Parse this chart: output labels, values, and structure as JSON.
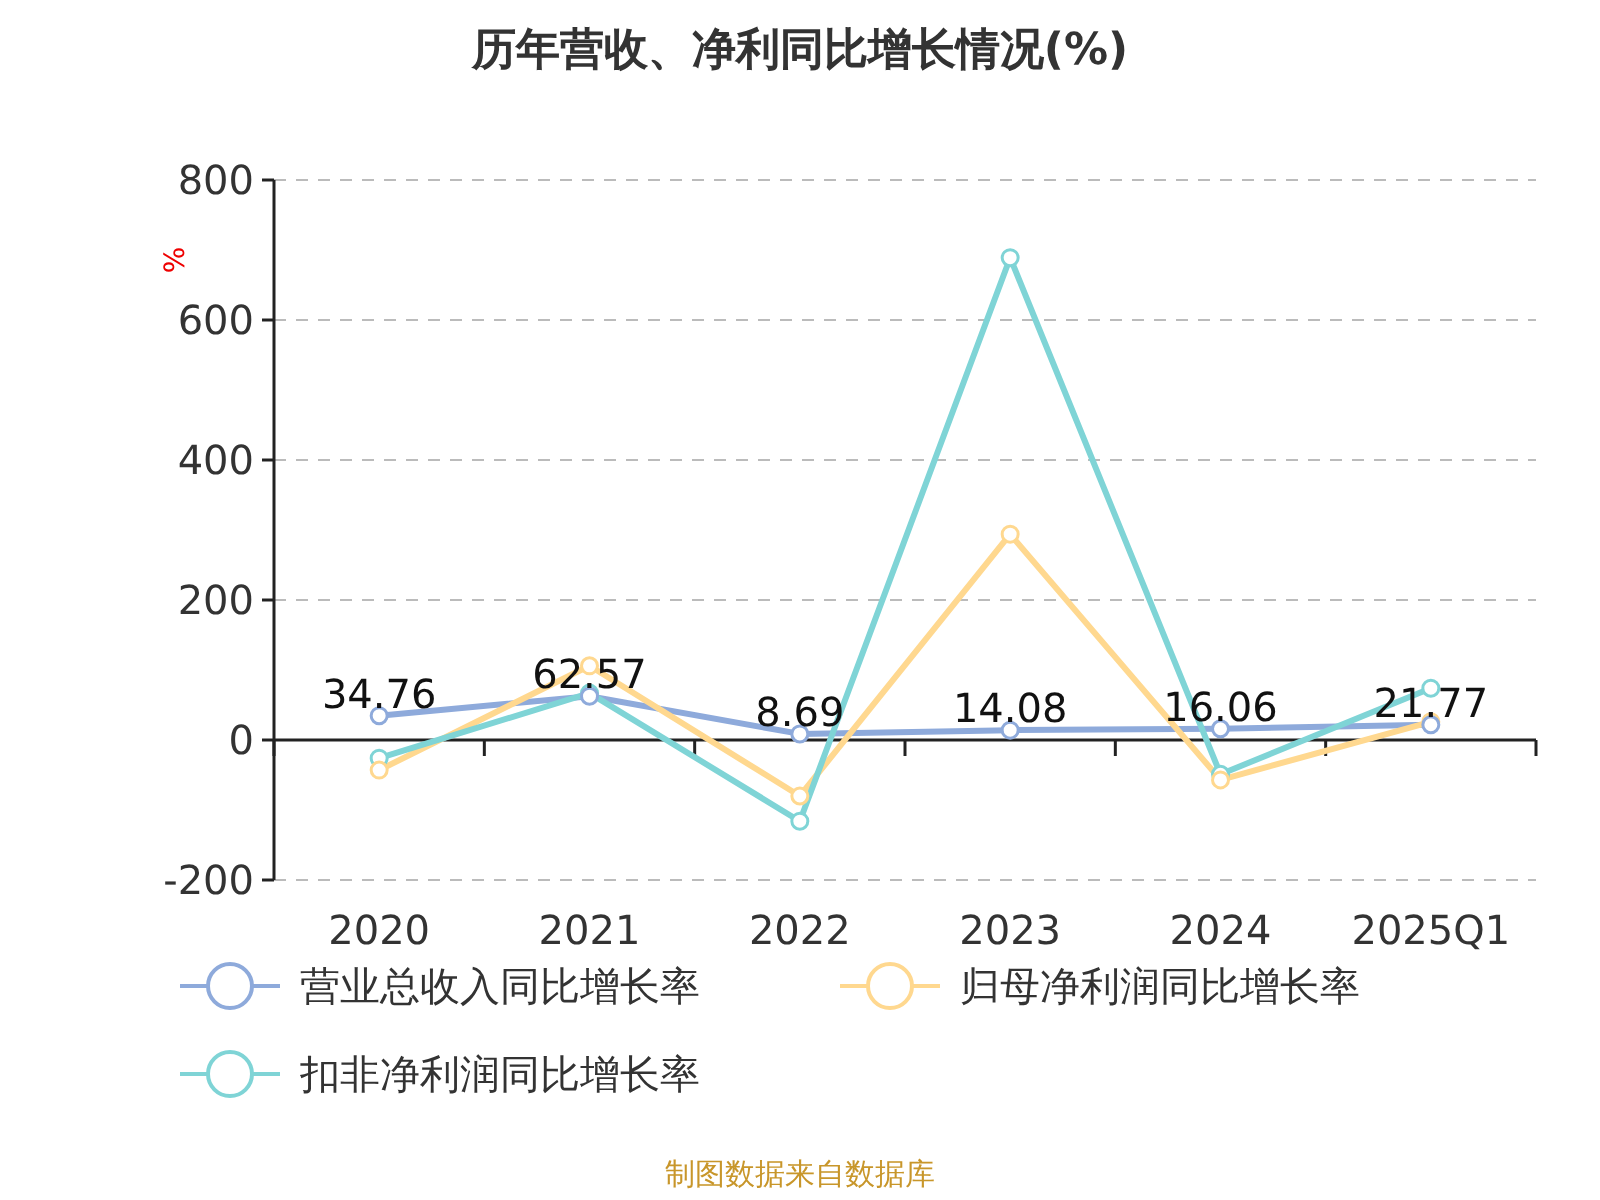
{
  "chart_data": {
    "type": "line",
    "title": "历年营收、净利同比增长情况(%)",
    "ylabel": "%",
    "categories": [
      "2020",
      "2021",
      "2022",
      "2023",
      "2024",
      "2025Q1"
    ],
    "series": [
      {
        "name": "营业总收入同比增长率",
        "color": "#8eaadb",
        "values": [
          34.76,
          62.57,
          8.69,
          14.08,
          16.06,
          21.77
        ],
        "value_labels": [
          "34.76",
          "62.57",
          "8.69",
          "14.08",
          "16.06",
          "21.77"
        ]
      },
      {
        "name": "归母净利润同比增长率",
        "color": "#ffd88f",
        "values": [
          -43,
          106,
          -80,
          294,
          -57,
          26
        ]
      },
      {
        "name": "扣非净利润同比增长率",
        "color": "#7fd4d6",
        "values": [
          -26,
          67,
          -116,
          689,
          -49,
          74
        ]
      }
    ],
    "ylim": [
      -200,
      800
    ],
    "yticks": [
      -200,
      0,
      200,
      400,
      600,
      800
    ],
    "grid": "y",
    "legend": "bottom",
    "marker": "circle",
    "line_style": "solid",
    "annotations": [
      "制图数据来自数据库"
    ]
  }
}
